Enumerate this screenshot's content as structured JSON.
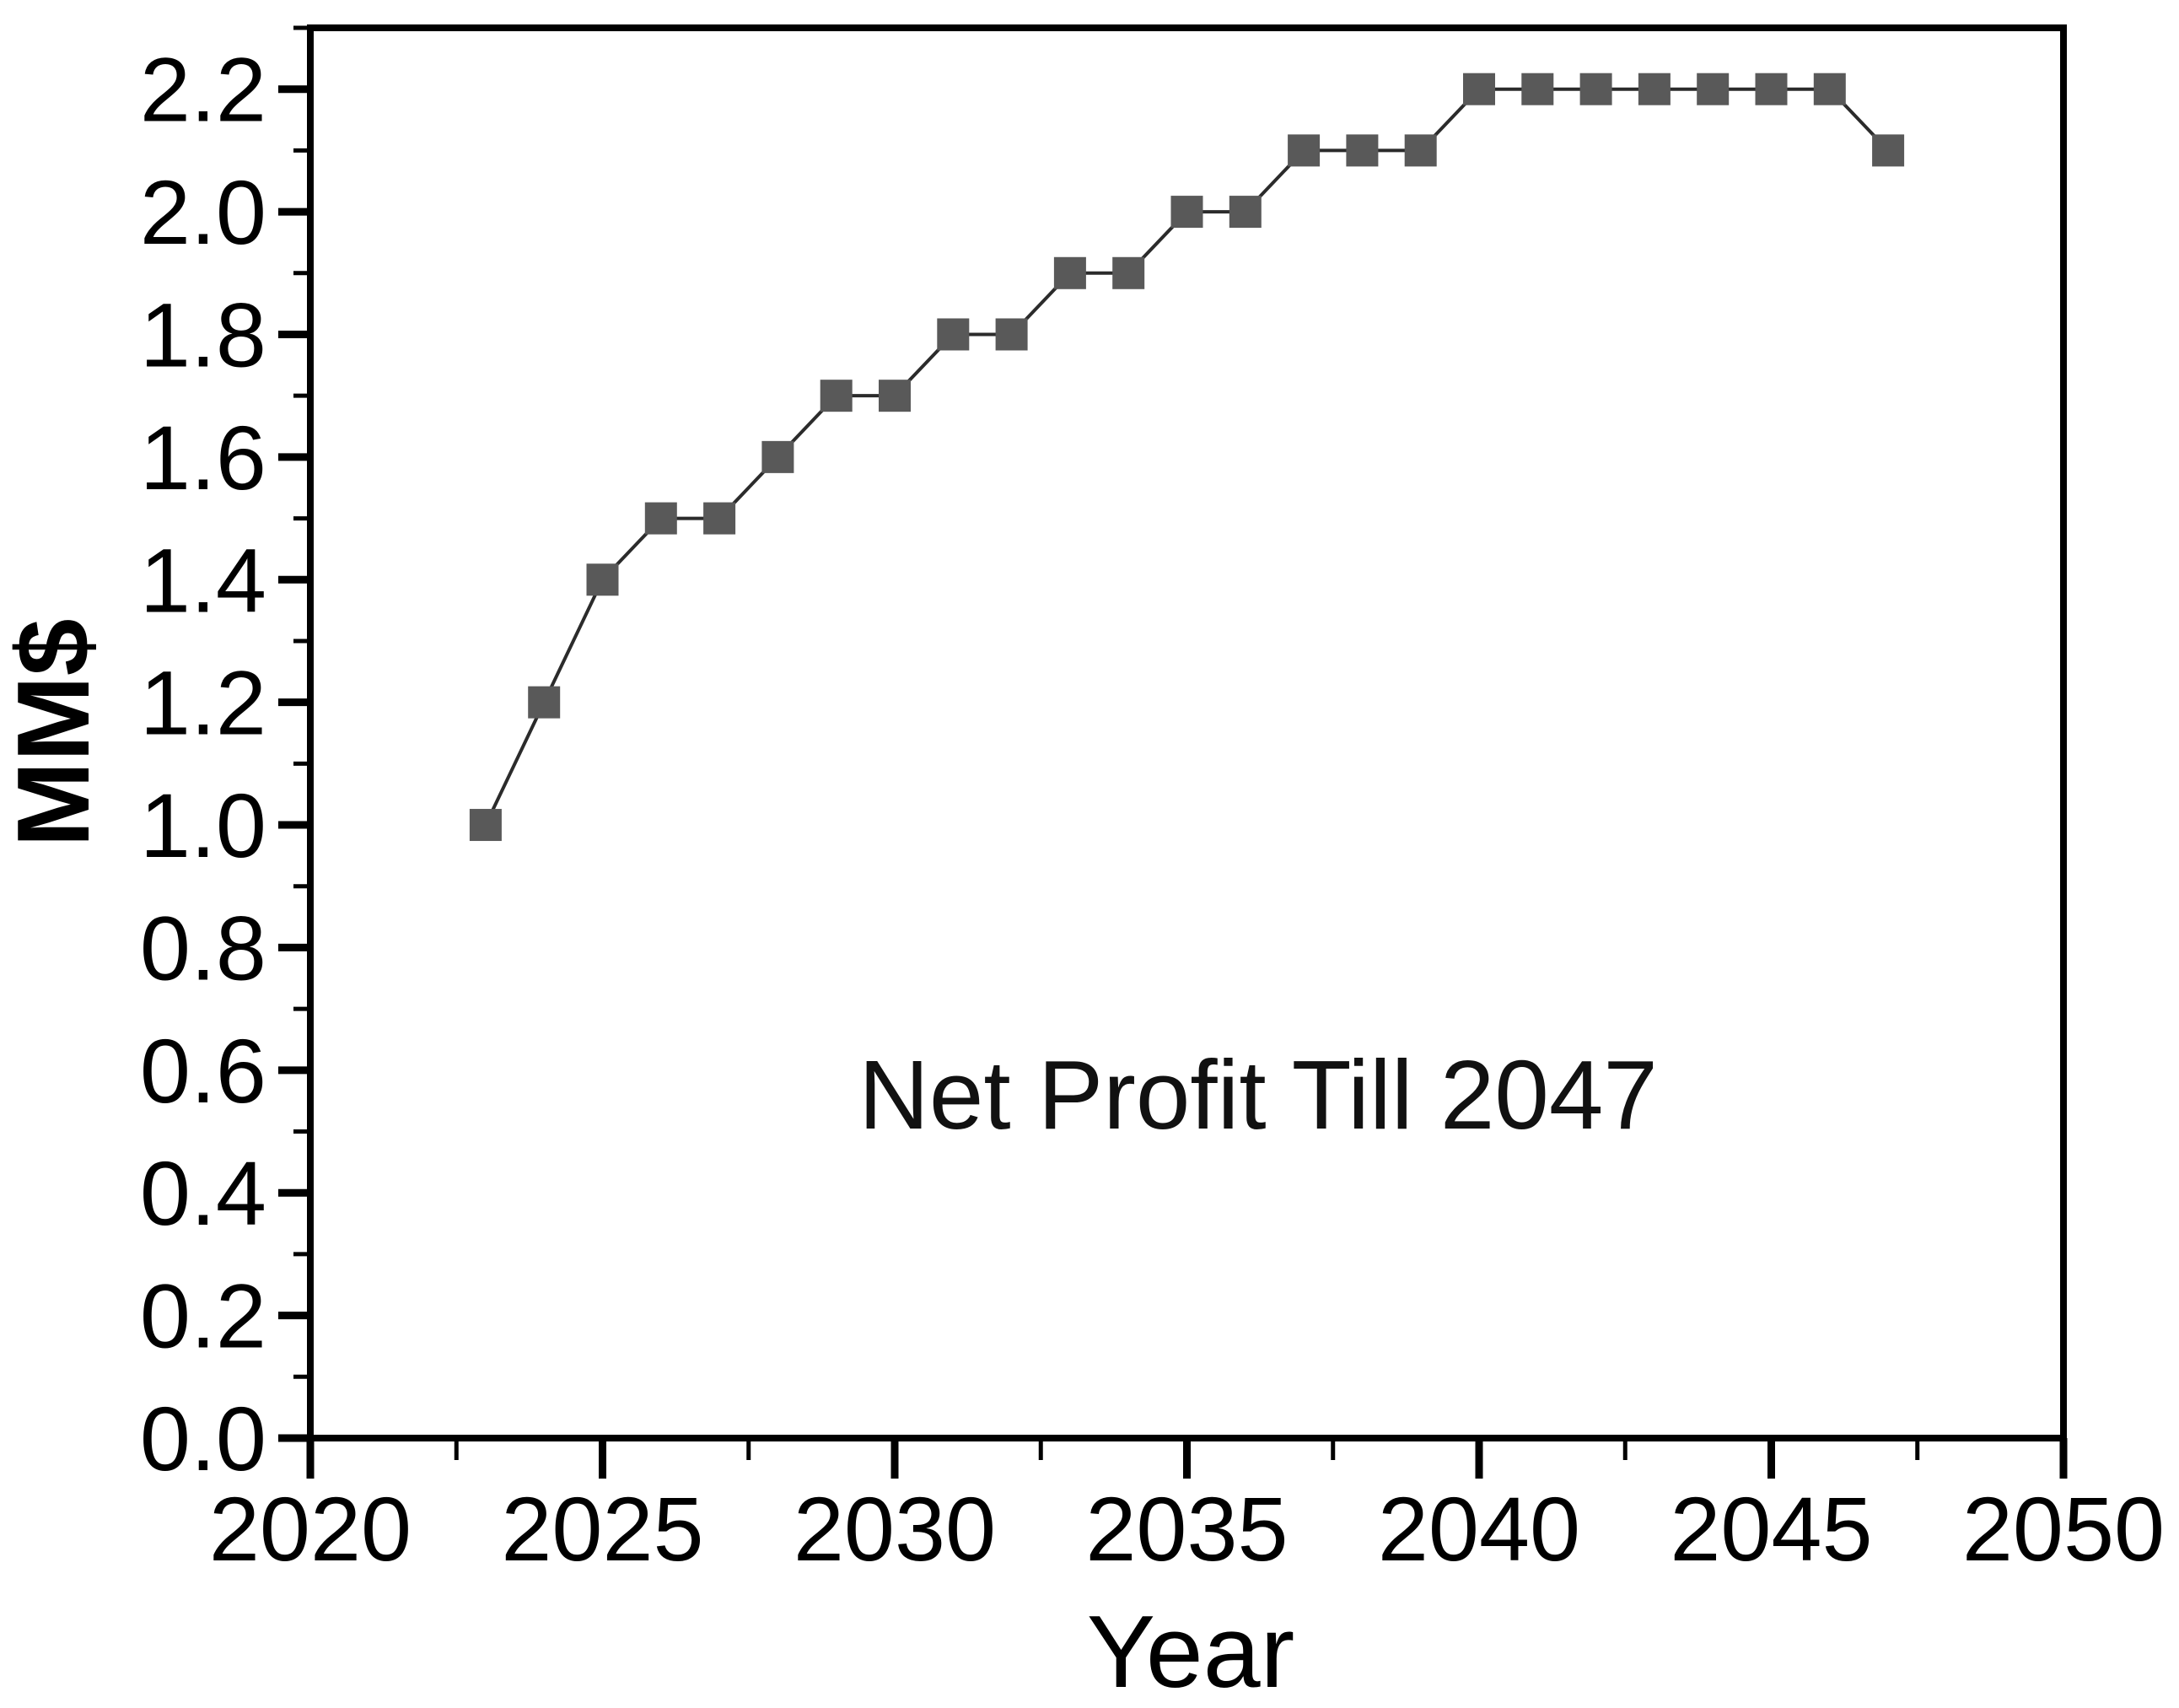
{
  "chart_data": {
    "type": "line",
    "annotation": "Net Profit Till 2047",
    "xlabel": "Year",
    "ylabel": "MM$",
    "series": [
      {
        "name": "Net Profit",
        "x": [
          2023,
          2024,
          2025,
          2026,
          2027,
          2028,
          2029,
          2030,
          2031,
          2032,
          2033,
          2034,
          2035,
          2036,
          2037,
          2038,
          2039,
          2040,
          2041,
          2042,
          2043,
          2044,
          2045,
          2046,
          2047
        ],
        "values": [
          1.0,
          1.2,
          1.4,
          1.5,
          1.5,
          1.6,
          1.7,
          1.7,
          1.8,
          1.8,
          1.9,
          1.9,
          2.0,
          2.0,
          2.1,
          2.1,
          2.1,
          2.2,
          2.2,
          2.2,
          2.2,
          2.2,
          2.2,
          2.2,
          2.1
        ]
      }
    ],
    "marker": "square",
    "grid": false,
    "legend": "none",
    "xlim": [
      2020,
      2050
    ],
    "ylim": [
      0.0,
      2.3
    ],
    "x_major_ticks": [
      2020,
      2025,
      2030,
      2035,
      2040,
      2045,
      2050
    ],
    "x_tick_labels": [
      "2020",
      "2025",
      "2030",
      "2035",
      "2040",
      "2045",
      "2050"
    ],
    "x_minor_ticks": [
      2022.5,
      2027.5,
      2032.5,
      2037.5,
      2042.5,
      2047.5
    ],
    "y_major_ticks": [
      0.0,
      0.2,
      0.4,
      0.6,
      0.8,
      1.0,
      1.2,
      1.4,
      1.6,
      1.8,
      2.0,
      2.2
    ],
    "y_tick_labels": [
      "0.0",
      "0.2",
      "0.4",
      "0.6",
      "0.8",
      "1.0",
      "1.2",
      "1.4",
      "1.6",
      "1.8",
      "2.0",
      "2.2"
    ],
    "y_minor_ticks": [
      0.1,
      0.3,
      0.5,
      0.7,
      0.9,
      1.1,
      1.3,
      1.5,
      1.7,
      1.9,
      2.1,
      2.3
    ],
    "colors": {
      "background": "#ffffff",
      "frame": "#000000",
      "tick": "#000000",
      "line": "#2b2b2b",
      "marker": "#595959",
      "text": "#000000"
    }
  }
}
